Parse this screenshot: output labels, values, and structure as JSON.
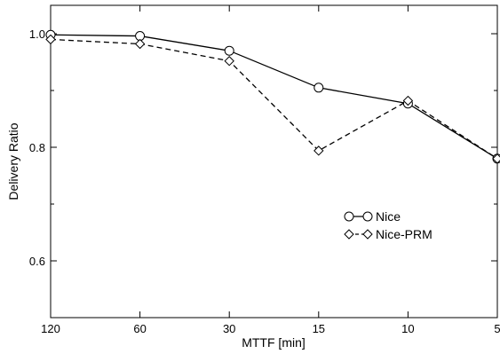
{
  "chart_data": {
    "type": "line",
    "xlabel": "MTTF [min]",
    "ylabel": "Delivery Ratio",
    "categories": [
      "120",
      "60",
      "30",
      "15",
      "10",
      "5"
    ],
    "ylim": [
      0.5,
      1.05
    ],
    "yticks": [
      0.6,
      0.8,
      1.0
    ],
    "ytick_labels": [
      "0.6",
      "0.8",
      "1.0"
    ],
    "legend_position": "center-right",
    "series": [
      {
        "name": "Nice",
        "marker": "circle",
        "line": "solid",
        "values": [
          0.998,
          0.996,
          0.97,
          0.905,
          0.877,
          0.78
        ]
      },
      {
        "name": "Nice-PRM",
        "marker": "diamond",
        "line": "dashed",
        "values": [
          0.99,
          0.982,
          0.952,
          0.794,
          0.882,
          0.78
        ]
      }
    ]
  }
}
